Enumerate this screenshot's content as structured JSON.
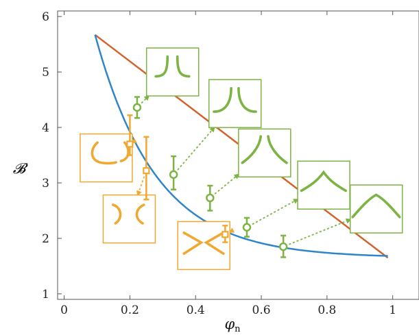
{
  "chart_data": {
    "type": "line",
    "title": "",
    "xlabel": "φ",
    "xlabel_subscript": "n",
    "ylabel": "𝓑",
    "xlim": [
      -0.02,
      1.08
    ],
    "ylim": [
      0.9,
      6.1
    ],
    "xticks": [
      0,
      0.2,
      0.4,
      0.6,
      0.8,
      1
    ],
    "xtick_labels": [
      "0",
      "0.2",
      "0.4",
      "0.6",
      "0.8",
      "1"
    ],
    "yticks": [
      1,
      2,
      3,
      4,
      5,
      6
    ],
    "ytick_labels": [
      "1",
      "2",
      "3",
      "4",
      "5",
      "6"
    ],
    "grid": false,
    "lines": [
      {
        "color": "#d4622d",
        "x": [
          0.094,
          0.985
        ],
        "y": [
          5.67,
          1.65
        ]
      },
      {
        "color": "#2e86c8",
        "shape": "curve",
        "x_start": 0.094,
        "x_end": 0.985,
        "y_start": 5.67,
        "y_end": 1.65
      }
    ],
    "series": [
      {
        "marker": "circle",
        "color": "#7cb342",
        "points": [
          {
            "x": 0.222,
            "y": 4.36,
            "ylow": 4.17,
            "yhigh": 4.55
          },
          {
            "x": 0.333,
            "y": 3.15,
            "ylow": 2.88,
            "yhigh": 3.48
          },
          {
            "x": 0.444,
            "y": 2.73,
            "ylow": 2.5,
            "yhigh": 2.95
          },
          {
            "x": 0.556,
            "y": 2.2,
            "ylow": 2.03,
            "yhigh": 2.37
          },
          {
            "x": 0.667,
            "y": 1.85,
            "ylow": 1.66,
            "yhigh": 2.05
          }
        ]
      },
      {
        "marker": "square",
        "color": "#f0a830",
        "points": [
          {
            "x": 0.2,
            "y": 3.7,
            "ylow": 3.5,
            "yhigh": 4.22
          },
          {
            "x": 0.25,
            "y": 3.22,
            "ylow": 2.7,
            "yhigh": 3.83
          },
          {
            "x": 0.49,
            "y": 2.07,
            "ylow": 1.93,
            "yhigh": 2.23
          }
        ]
      }
    ],
    "insets": [
      {
        "color": "#7cb342",
        "shape": "split-close",
        "target": {
          "x": 0.222,
          "y": 4.36
        },
        "anchor": {
          "x": 0.33,
          "y": 5.0
        }
      },
      {
        "color": "#7cb342",
        "shape": "split-open",
        "target": {
          "x": 0.333,
          "y": 3.15
        },
        "anchor": {
          "x": 0.52,
          "y": 4.43
        }
      },
      {
        "color": "#7cb342",
        "shape": "split-wide",
        "target": {
          "x": 0.444,
          "y": 2.73
        },
        "anchor": {
          "x": 0.61,
          "y": 3.54
        }
      },
      {
        "color": "#7cb342",
        "shape": "peak-cusp",
        "target": {
          "x": 0.556,
          "y": 2.2
        },
        "anchor": {
          "x": 0.79,
          "y": 2.96
        }
      },
      {
        "color": "#7cb342",
        "shape": "peak-wide",
        "target": {
          "x": 0.667,
          "y": 1.85
        },
        "anchor": {
          "x": 0.95,
          "y": 2.53
        }
      },
      {
        "color": "#f0a830",
        "shape": "bulge-open",
        "target": {
          "x": 0.2,
          "y": 3.7
        },
        "anchor": {
          "x": 0.128,
          "y": 3.45
        }
      },
      {
        "color": "#f0a830",
        "shape": "bulge-close",
        "target": {
          "x": 0.25,
          "y": 3.22
        },
        "anchor": {
          "x": 0.198,
          "y": 2.35
        }
      },
      {
        "color": "#f0a830",
        "shape": "cross",
        "target": {
          "x": 0.49,
          "y": 2.07
        },
        "anchor": {
          "x": 0.425,
          "y": 1.87
        }
      }
    ]
  }
}
